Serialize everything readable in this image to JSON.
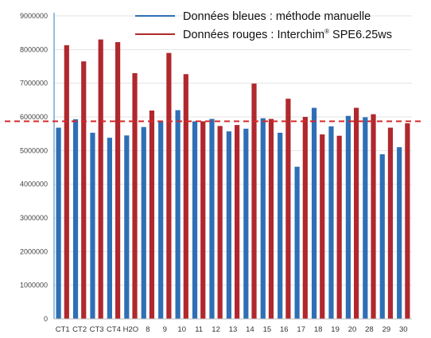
{
  "chart_data": {
    "type": "bar",
    "categories": [
      "CT1",
      "CT2",
      "CT3",
      "CT4",
      "H2O",
      "8",
      "9",
      "10",
      "11",
      "12",
      "13",
      "14",
      "15",
      "16",
      "17",
      "18",
      "19",
      "20",
      "28",
      "29",
      "30"
    ],
    "series": [
      {
        "name": "Données bleues : méthode manuelle",
        "color": "#2f6fb5",
        "values": [
          5680000,
          5930000,
          5530000,
          5380000,
          5450000,
          5700000,
          5880000,
          6200000,
          5870000,
          5940000,
          5570000,
          5650000,
          5960000,
          5530000,
          4520000,
          6270000,
          5720000,
          6030000,
          5990000,
          4890000,
          5100000
        ]
      },
      {
        "name": "Données rouges : Interchim® SPE6.25ws",
        "color": "#b0282d",
        "values": [
          8130000,
          7650000,
          8300000,
          8220000,
          7300000,
          6190000,
          7900000,
          7270000,
          5870000,
          5730000,
          5760000,
          6990000,
          5940000,
          6540000,
          6000000,
          5480000,
          5440000,
          6270000,
          6080000,
          5680000,
          5810000
        ]
      }
    ],
    "legend": {
      "position": "top-right",
      "blue_label_main": "Données bleues : méthode manuelle",
      "red_label_prefix": "Données rouges : Interchim",
      "red_label_sup": "®",
      "red_label_suffix": " SPE6.25ws"
    },
    "ylim": [
      0,
      9000000
    ],
    "yticks": [
      "0",
      "1000000",
      "2000000",
      "3000000",
      "4000000",
      "5000000",
      "6000000",
      "7000000",
      "8000000",
      "9000000"
    ],
    "ytick_values": [
      0,
      1000000,
      2000000,
      3000000,
      4000000,
      5000000,
      6000000,
      7000000,
      8000000,
      9000000
    ],
    "grid": true,
    "reference_line": {
      "value": 5870000,
      "style": "dashed",
      "color": "#d62728"
    },
    "axis_color": "#5b9bd5",
    "grid_color": "#e3e3e3"
  }
}
